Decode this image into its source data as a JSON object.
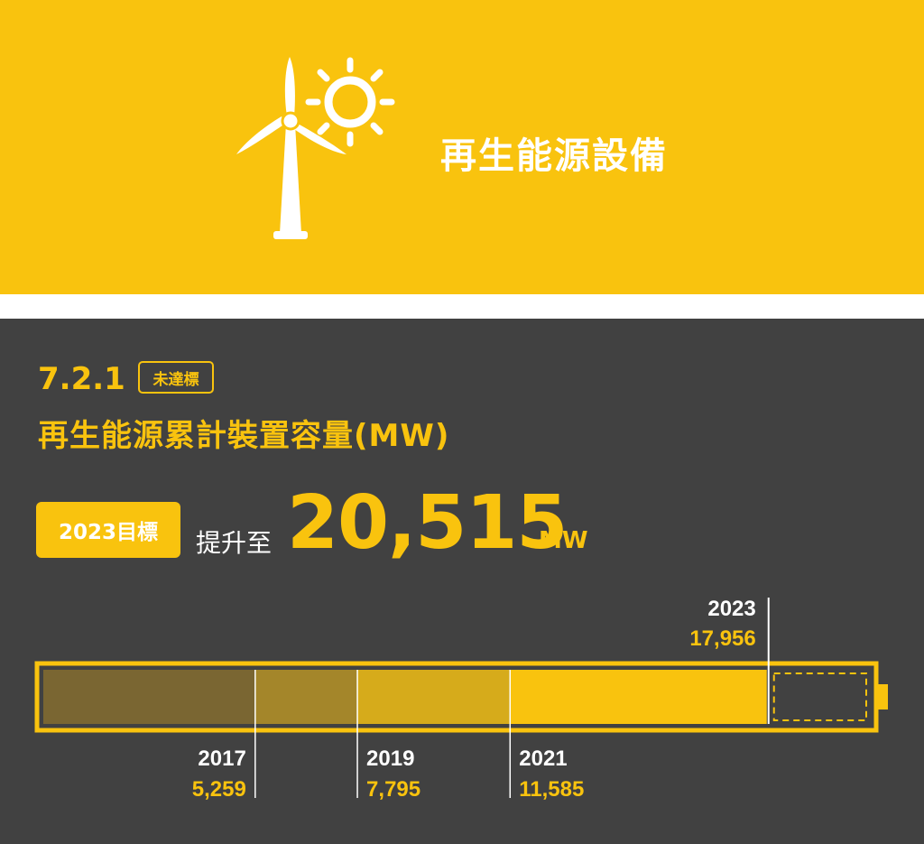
{
  "header": {
    "title": "再生能源設備",
    "icon": "wind-turbine-sun-icon",
    "background_color": "#f9c30e"
  },
  "metric": {
    "number": "7.2.1",
    "status": "未達標",
    "title": "再生能源累計裝置容量(MW)"
  },
  "target": {
    "badge": "2023目標",
    "prefix": "提升至",
    "value": "20,515",
    "unit": "MW"
  },
  "colors": {
    "accent": "#f9c30e",
    "panel": "#414141",
    "text_light": "#ffffff"
  },
  "chart_data": {
    "type": "bar",
    "orientation": "horizontal-stacked-progress",
    "unit": "MW",
    "target": 20515,
    "points": [
      {
        "year": "2017",
        "value": 5259,
        "label": "5,259",
        "fill": "#7a6632"
      },
      {
        "year": "2019",
        "value": 7795,
        "label": "7,795",
        "fill": "#a4862a"
      },
      {
        "year": "2021",
        "value": 11585,
        "label": "11,585",
        "fill": "#d6ab1b"
      },
      {
        "year": "2023",
        "value": 17956,
        "label": "17,956",
        "fill": "#f9c30e"
      }
    ]
  }
}
